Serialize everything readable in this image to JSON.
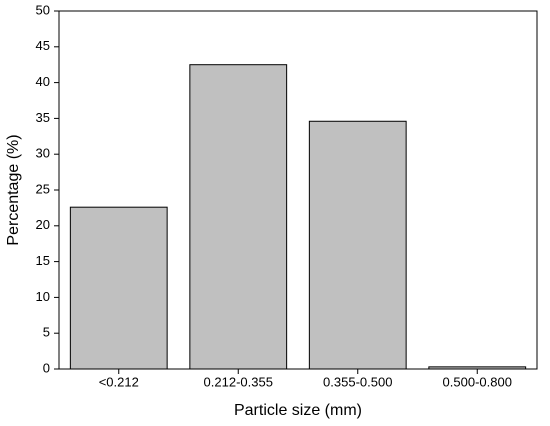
{
  "chart_data": {
    "type": "bar",
    "xlabel": "Particle size (mm)",
    "ylabel": "Percentage (%)",
    "categories": [
      "<0.212",
      "0.212-0.355",
      "0.355-0.500",
      "0.500-0.800"
    ],
    "values": [
      22.6,
      42.5,
      34.6,
      0.3
    ],
    "color": "#c0c0c0",
    "ylim": [
      0,
      50
    ],
    "yticks": [
      0,
      5,
      10,
      15,
      20,
      25,
      30,
      35,
      40,
      45,
      50
    ],
    "grid": false
  }
}
